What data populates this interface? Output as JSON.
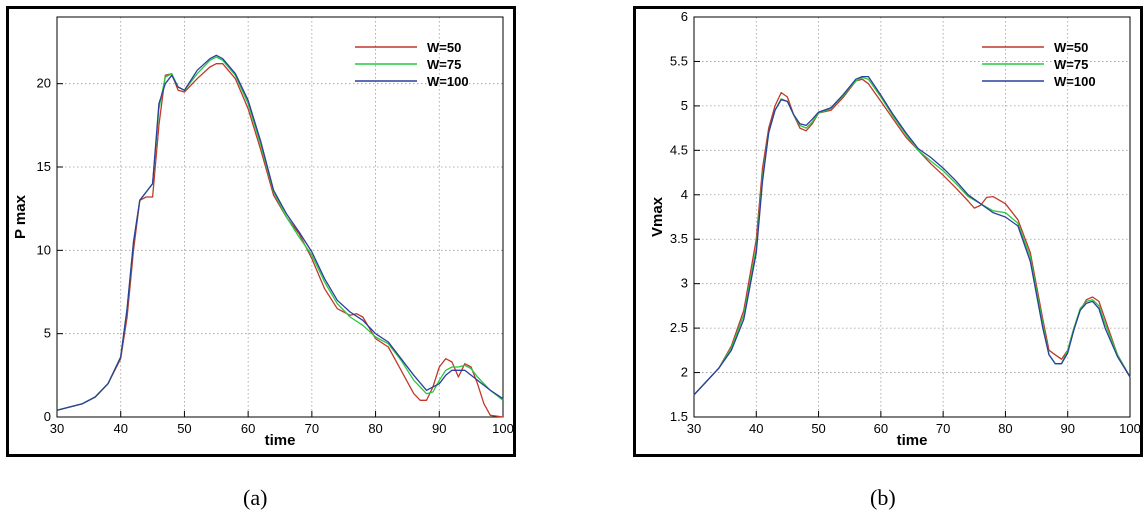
{
  "chart_data": [
    {
      "type": "line",
      "caption": "(a)",
      "xlabel": "time",
      "ylabel": "P max",
      "xlim": [
        30,
        100
      ],
      "ylim": [
        0,
        24
      ],
      "xticks": [
        30,
        40,
        50,
        60,
        70,
        80,
        90,
        100
      ],
      "yticks": [
        0,
        5,
        10,
        15,
        20
      ],
      "grid": true,
      "legend_position": "top-right",
      "series": [
        {
          "name": "W=50",
          "color": "#c0392b",
          "x": [
            30,
            32,
            34,
            36,
            38,
            40,
            41,
            42,
            43,
            44,
            45,
            46,
            47,
            48,
            49,
            50,
            52,
            54,
            55,
            56,
            58,
            60,
            62,
            64,
            66,
            68,
            70,
            72,
            74,
            76,
            77,
            78,
            80,
            82,
            84,
            86,
            87,
            88,
            89,
            90,
            91,
            92,
            93,
            94,
            95,
            96,
            97,
            98,
            100
          ],
          "y": [
            0.4,
            0.6,
            0.8,
            1.2,
            2.0,
            3.5,
            6.0,
            10.0,
            13.0,
            13.2,
            13.2,
            17.5,
            20.5,
            20.6,
            19.6,
            19.5,
            20.3,
            21.0,
            21.2,
            21.2,
            20.3,
            18.5,
            16.0,
            13.3,
            12.0,
            11.0,
            9.5,
            7.7,
            6.5,
            6.1,
            6.2,
            6.0,
            4.7,
            4.2,
            2.8,
            1.4,
            1.0,
            1.0,
            1.8,
            3.0,
            3.5,
            3.3,
            2.4,
            3.2,
            3.0,
            2.0,
            0.8,
            0.1,
            0.0
          ]
        },
        {
          "name": "W=75",
          "color": "#27c93f",
          "x": [
            30,
            32,
            34,
            36,
            38,
            40,
            41,
            42,
            43,
            44,
            45,
            46,
            47,
            48,
            49,
            50,
            52,
            54,
            55,
            56,
            58,
            60,
            62,
            64,
            66,
            68,
            70,
            72,
            74,
            76,
            78,
            80,
            82,
            84,
            86,
            88,
            89,
            90,
            91,
            92,
            93,
            94,
            95,
            96,
            98,
            100
          ],
          "y": [
            0.4,
            0.6,
            0.8,
            1.2,
            2.0,
            3.6,
            6.5,
            10.5,
            13.0,
            13.5,
            14.0,
            18.5,
            20.4,
            20.6,
            19.8,
            19.6,
            20.6,
            21.4,
            21.6,
            21.4,
            20.5,
            18.8,
            16.3,
            13.5,
            12.0,
            10.8,
            9.7,
            8.1,
            6.8,
            6.0,
            5.5,
            4.8,
            4.4,
            3.4,
            2.2,
            1.4,
            1.5,
            2.2,
            2.8,
            3.0,
            3.0,
            3.1,
            2.9,
            2.4,
            1.6,
            1.0
          ]
        },
        {
          "name": "W=100",
          "color": "#2c3e9e",
          "x": [
            30,
            32,
            34,
            36,
            38,
            40,
            41,
            42,
            43,
            44,
            45,
            46,
            47,
            48,
            49,
            50,
            52,
            54,
            55,
            56,
            58,
            60,
            62,
            64,
            66,
            68,
            70,
            72,
            74,
            76,
            78,
            80,
            82,
            84,
            86,
            88,
            90,
            91,
            92,
            94,
            96,
            98,
            100
          ],
          "y": [
            0.4,
            0.6,
            0.8,
            1.2,
            2.0,
            3.6,
            6.5,
            10.5,
            13.0,
            13.5,
            14.0,
            18.8,
            20.0,
            20.5,
            19.8,
            19.6,
            20.8,
            21.5,
            21.7,
            21.5,
            20.6,
            19.0,
            16.5,
            13.6,
            12.2,
            11.1,
            9.9,
            8.3,
            7.0,
            6.3,
            5.8,
            5.0,
            4.5,
            3.5,
            2.5,
            1.6,
            2.0,
            2.5,
            2.8,
            2.8,
            2.2,
            1.6,
            1.1
          ]
        }
      ]
    },
    {
      "type": "line",
      "caption": "(b)",
      "xlabel": "time",
      "ylabel": "Vmax",
      "xlim": [
        30,
        100
      ],
      "ylim": [
        1.5,
        6
      ],
      "xticks": [
        30,
        40,
        50,
        60,
        70,
        80,
        90,
        100
      ],
      "yticks": [
        1.5,
        2,
        2.5,
        3,
        3.5,
        4,
        4.5,
        5,
        5.5,
        6
      ],
      "grid": true,
      "legend_position": "top-right",
      "series": [
        {
          "name": "W=50",
          "color": "#c0392b",
          "x": [
            30,
            32,
            34,
            36,
            38,
            40,
            41,
            42,
            43,
            44,
            45,
            46,
            47,
            48,
            49,
            50,
            52,
            54,
            56,
            57,
            58,
            60,
            62,
            64,
            66,
            68,
            70,
            72,
            74,
            75,
            76,
            77,
            78,
            80,
            82,
            84,
            86,
            87,
            88,
            89,
            90,
            91,
            92,
            93,
            94,
            95,
            96,
            98,
            100
          ],
          "y": [
            1.75,
            1.9,
            2.05,
            2.3,
            2.7,
            3.5,
            4.3,
            4.75,
            5.0,
            5.15,
            5.1,
            4.9,
            4.75,
            4.72,
            4.8,
            4.92,
            4.95,
            5.1,
            5.28,
            5.3,
            5.25,
            5.05,
            4.85,
            4.65,
            4.5,
            4.35,
            4.22,
            4.08,
            3.93,
            3.85,
            3.88,
            3.97,
            3.98,
            3.9,
            3.72,
            3.35,
            2.6,
            2.25,
            2.2,
            2.15,
            2.25,
            2.5,
            2.7,
            2.82,
            2.85,
            2.8,
            2.6,
            2.2,
            1.95
          ]
        },
        {
          "name": "W=75",
          "color": "#27c93f",
          "x": [
            30,
            32,
            34,
            36,
            38,
            40,
            41,
            42,
            43,
            44,
            45,
            46,
            47,
            48,
            49,
            50,
            52,
            54,
            56,
            57,
            58,
            60,
            62,
            64,
            66,
            68,
            70,
            72,
            74,
            76,
            78,
            80,
            82,
            84,
            86,
            87,
            88,
            89,
            90,
            91,
            92,
            93,
            94,
            95,
            96,
            98,
            100
          ],
          "y": [
            1.75,
            1.9,
            2.05,
            2.28,
            2.65,
            3.4,
            4.2,
            4.7,
            4.95,
            5.08,
            5.05,
            4.9,
            4.78,
            4.75,
            4.82,
            4.92,
            4.97,
            5.12,
            5.28,
            5.32,
            5.3,
            5.1,
            4.88,
            4.68,
            4.5,
            4.38,
            4.27,
            4.13,
            3.98,
            3.9,
            3.82,
            3.8,
            3.68,
            3.3,
            2.55,
            2.2,
            2.1,
            2.1,
            2.25,
            2.5,
            2.72,
            2.8,
            2.82,
            2.75,
            2.55,
            2.2,
            1.95
          ]
        },
        {
          "name": "W=100",
          "color": "#2c3e9e",
          "x": [
            30,
            32,
            34,
            36,
            38,
            40,
            41,
            42,
            43,
            44,
            45,
            46,
            47,
            48,
            49,
            50,
            52,
            54,
            56,
            57,
            58,
            60,
            62,
            64,
            66,
            68,
            70,
            72,
            74,
            76,
            78,
            80,
            82,
            84,
            86,
            87,
            88,
            89,
            90,
            91,
            92,
            93,
            94,
            95,
            96,
            98,
            100
          ],
          "y": [
            1.75,
            1.9,
            2.05,
            2.25,
            2.6,
            3.35,
            4.15,
            4.7,
            4.95,
            5.07,
            5.05,
            4.9,
            4.8,
            4.78,
            4.85,
            4.93,
            4.98,
            5.13,
            5.3,
            5.33,
            5.33,
            5.12,
            4.9,
            4.7,
            4.52,
            4.42,
            4.3,
            4.16,
            4.0,
            3.9,
            3.8,
            3.75,
            3.65,
            3.25,
            2.5,
            2.2,
            2.1,
            2.1,
            2.22,
            2.48,
            2.7,
            2.78,
            2.8,
            2.72,
            2.5,
            2.18,
            1.95
          ]
        }
      ]
    }
  ]
}
